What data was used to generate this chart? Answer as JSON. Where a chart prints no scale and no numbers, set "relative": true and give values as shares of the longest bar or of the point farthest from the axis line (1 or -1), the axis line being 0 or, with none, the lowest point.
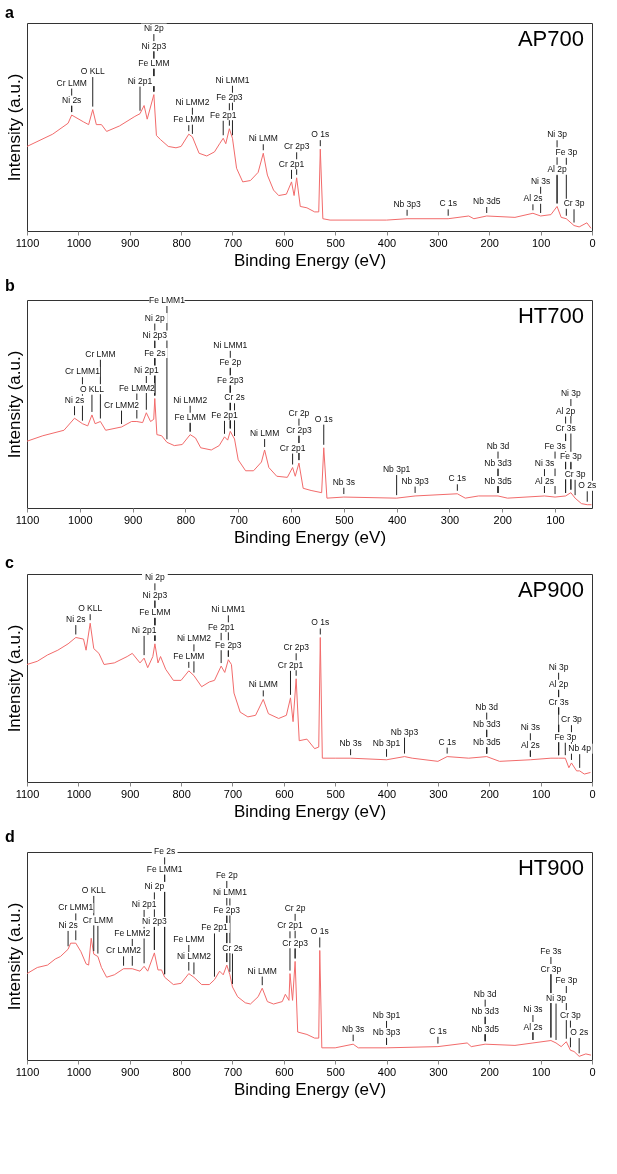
{
  "chart_data": [
    {
      "type": "line",
      "title": "a",
      "xlabel": "Binding Energy (eV)",
      "ylabel": "Intensity (a.u.)",
      "relative": true,
      "xlim": [
        1100,
        0
      ],
      "xticks": [
        1100,
        1000,
        900,
        800,
        700,
        600,
        500,
        400,
        300,
        200,
        100,
        0
      ],
      "x": [
        1100,
        1050,
        1020,
        1013,
        990,
        980,
        972,
        965,
        955,
        945,
        920,
        890,
        880,
        872,
        866,
        853,
        848,
        840,
        825,
        810,
        800,
        785,
        778,
        765,
        750,
        735,
        725,
        718,
        713,
        706,
        700,
        692,
        680,
        665,
        650,
        640,
        632,
        620,
        610,
        595,
        585,
        580,
        575,
        568,
        555,
        540,
        532,
        529,
        524,
        510,
        400,
        360,
        280,
        240,
        230,
        205,
        150,
        115,
        100,
        80,
        68,
        60,
        50,
        35,
        25,
        10,
        2
      ],
      "series": [
        {
          "color": "#f26b6b",
          "values": [
            0.62,
            0.71,
            0.79,
            0.85,
            0.8,
            0.78,
            0.89,
            0.78,
            0.78,
            0.73,
            0.77,
            0.84,
            0.86,
            0.92,
            0.82,
            1,
            0.7,
            0.67,
            0.62,
            0.61,
            0.62,
            0.71,
            0.69,
            0.57,
            0.55,
            0.58,
            0.64,
            0.68,
            0.64,
            0.75,
            0.68,
            0.46,
            0.36,
            0.37,
            0.43,
            0.57,
            0.41,
            0.3,
            0.26,
            0.27,
            0.36,
            0.26,
            0.39,
            0.18,
            0.17,
            0.14,
            0.14,
            0.6,
            0.09,
            0.08,
            0.08,
            0.09,
            0.09,
            0.11,
            0.09,
            0.11,
            0.1,
            0.13,
            0.11,
            0.12,
            0.18,
            0.1,
            0.09,
            0.04,
            0.03,
            0.06,
            0.02
          ]
        }
      ],
      "annotations": [
        "AP700",
        {
          "text": "Ni 2s",
          "x": 1013,
          "y": 0.85
        },
        {
          "text": "Cr LMM",
          "x": 1013,
          "y": 0.85
        },
        {
          "text": "O KLL",
          "x": 972,
          "y": 0.89
        },
        {
          "text": "Ni 2p1",
          "x": 880,
          "y": 0.86
        },
        {
          "text": "Fe LMM",
          "x": 853,
          "y": 1
        },
        {
          "text": "Ni 2p3",
          "x": 853,
          "y": 1
        },
        {
          "text": "Ni 2p",
          "x": 853,
          "y": 1
        },
        {
          "text": "Fe LMM",
          "x": 785,
          "y": 0.71
        },
        {
          "text": "Ni LMM2",
          "x": 778,
          "y": 0.69
        },
        {
          "text": "Fe 2p1",
          "x": 718,
          "y": 0.68
        },
        {
          "text": "Fe 2p3",
          "x": 706,
          "y": 0.75
        },
        {
          "text": "Ni LMM1",
          "x": 700,
          "y": 0.68
        },
        {
          "text": "Ni LMM",
          "x": 640,
          "y": 0.57
        },
        {
          "text": "O 1s",
          "x": 529,
          "y": 0.6
        },
        {
          "text": "Cr 2p1",
          "x": 585,
          "y": 0.36
        },
        {
          "text": "Cr 2p3",
          "x": 575,
          "y": 0.39
        },
        {
          "text": "Nb 3p3",
          "x": 360,
          "y": 0.09
        },
        {
          "text": "C 1s",
          "x": 280,
          "y": 0.09
        },
        {
          "text": "Nb 3d5",
          "x": 205,
          "y": 0.11
        },
        {
          "text": "Al 2s",
          "x": 115,
          "y": 0.13
        },
        {
          "text": "Ni 3s",
          "x": 100,
          "y": 0.11
        },
        {
          "text": "Cr 3p",
          "x": 35,
          "y": 0.04
        },
        {
          "text": "Al 2p",
          "x": 68,
          "y": 0.18
        },
        {
          "text": "Fe 3p",
          "x": 50,
          "y": 0.09
        },
        {
          "text": "Ni 3p",
          "x": 68,
          "y": 0.18
        }
      ]
    },
    {
      "type": "line",
      "title": "b",
      "xlabel": "Binding Energy (eV)",
      "ylabel": "Intensity (a.u.)",
      "relative": true,
      "xlim": [
        1100,
        30
      ],
      "xticks": [
        1100,
        1000,
        900,
        800,
        700,
        600,
        500,
        400,
        300,
        200,
        100
      ],
      "x": [
        1100,
        1070,
        1030,
        1010,
        995,
        985,
        977,
        971,
        961,
        951,
        921,
        902,
        892,
        881,
        874,
        866,
        860,
        858,
        854,
        845,
        835,
        821,
        806,
        791,
        781,
        771,
        751,
        736,
        726,
        720,
        715,
        707,
        700,
        686,
        671,
        656,
        650,
        642,
        627,
        607,
        597,
        592,
        585,
        577,
        562,
        542,
        538,
        532,
        500,
        400,
        365,
        285,
        270,
        245,
        208,
        190,
        120,
        100,
        80,
        70,
        62,
        50,
        39,
        31
      ],
      "series": [
        {
          "color": "#f26b6b",
          "values": [
            0.61,
            0.66,
            0.71,
            0.82,
            0.77,
            0.75,
            0.85,
            0.77,
            0.79,
            0.71,
            0.74,
            0.79,
            0.79,
            0.78,
            0.87,
            0.79,
            0.81,
            1,
            0.67,
            0.66,
            0.6,
            0.57,
            0.58,
            0.67,
            0.64,
            0.55,
            0.53,
            0.57,
            0.65,
            0.62,
            0.7,
            0.63,
            0.44,
            0.34,
            0.34,
            0.42,
            0.53,
            0.37,
            0.29,
            0.28,
            0.37,
            0.29,
            0.41,
            0.18,
            0.16,
            0.14,
            0.55,
            0.09,
            0.1,
            0.09,
            0.11,
            0.13,
            0.09,
            0.11,
            0.11,
            0.09,
            0.11,
            0.1,
            0.11,
            0.14,
            0.09,
            0.04,
            0.03,
            0.03
          ]
        }
      ],
      "annotations": [
        "HT700",
        {
          "text": "Ni 2s",
          "x": 1010,
          "y": 0.82
        },
        {
          "text": "O KLL",
          "x": 977,
          "y": 0.85
        },
        {
          "text": "Cr LMM1",
          "x": 995,
          "y": 0.77
        },
        {
          "text": "Cr LMM",
          "x": 961,
          "y": 0.79
        },
        {
          "text": "Cr LMM2",
          "x": 921,
          "y": 0.74
        },
        {
          "text": "Fe LMM2",
          "x": 892,
          "y": 0.79
        },
        {
          "text": "Ni 2p1",
          "x": 874,
          "y": 0.87
        },
        {
          "text": "Fe 2s",
          "x": 858,
          "y": 1
        },
        {
          "text": "Ni 2p3",
          "x": 858,
          "y": 1
        },
        {
          "text": "Ni 2p",
          "x": 858,
          "y": 1
        },
        {
          "text": "Fe LMM1",
          "x": 835,
          "y": 0.6
        },
        {
          "text": "Fe LMM",
          "x": 791,
          "y": 0.67
        },
        {
          "text": "Ni LMM2",
          "x": 791,
          "y": 0.67
        },
        {
          "text": "Fe 2p1",
          "x": 726,
          "y": 0.65
        },
        {
          "text": "Cr 2s",
          "x": 707,
          "y": 0.63
        },
        {
          "text": "Fe 2p3",
          "x": 715,
          "y": 0.7
        },
        {
          "text": "Fe 2p",
          "x": 715,
          "y": 0.7
        },
        {
          "text": "Ni LMM1",
          "x": 715,
          "y": 0.7
        },
        {
          "text": "Ni LMM",
          "x": 650,
          "y": 0.53
        },
        {
          "text": "Cr 2p1",
          "x": 597,
          "y": 0.37
        },
        {
          "text": "Cr 2p3",
          "x": 585,
          "y": 0.41
        },
        {
          "text": "Cr 2p",
          "x": 585,
          "y": 0.41
        },
        {
          "text": "O 1s",
          "x": 538,
          "y": 0.55
        },
        {
          "text": "Nb 3s",
          "x": 500,
          "y": 0.1
        },
        {
          "text": "Nb 3p3",
          "x": 365,
          "y": 0.11
        },
        {
          "text": "Nb 3p1",
          "x": 400,
          "y": 0.09
        },
        {
          "text": "C 1s",
          "x": 285,
          "y": 0.13
        },
        {
          "text": "Nb 3d5",
          "x": 208,
          "y": 0.11
        },
        {
          "text": "Nb 3d3",
          "x": 208,
          "y": 0.11
        },
        {
          "text": "Nb 3d",
          "x": 208,
          "y": 0.11
        },
        {
          "text": "Al 2s",
          "x": 120,
          "y": 0.11
        },
        {
          "text": "Ni 3s",
          "x": 120,
          "y": 0.11
        },
        {
          "text": "Fe 3s",
          "x": 100,
          "y": 0.1
        },
        {
          "text": "O 2s",
          "x": 39,
          "y": 0.03
        },
        {
          "text": "Cr 3p",
          "x": 62,
          "y": 0.09
        },
        {
          "text": "Fe 3p",
          "x": 70,
          "y": 0.14
        },
        {
          "text": "Cr 3s",
          "x": 80,
          "y": 0.11
        },
        {
          "text": "Al 2p",
          "x": 80,
          "y": 0.11
        },
        {
          "text": "Ni 3p",
          "x": 70,
          "y": 0.14
        }
      ]
    },
    {
      "type": "line",
      "title": "c",
      "xlabel": "Binding Energy (eV)",
      "ylabel": "Intensity (a.u.)",
      "relative": true,
      "xlim": [
        1100,
        0
      ],
      "xticks": [
        1100,
        1000,
        900,
        800,
        700,
        600,
        500,
        400,
        300,
        200,
        100,
        0
      ],
      "x": [
        1100,
        1080,
        1060,
        1040,
        1020,
        1005,
        990,
        985,
        977,
        970,
        960,
        950,
        930,
        905,
        895,
        880,
        872,
        865,
        855,
        851,
        845,
        840,
        830,
        815,
        800,
        785,
        775,
        760,
        745,
        735,
        722,
        715,
        708,
        702,
        697,
        685,
        670,
        655,
        640,
        630,
        610,
        595,
        587,
        582,
        576,
        570,
        555,
        540,
        532,
        529,
        525,
        500,
        470,
        400,
        365,
        350,
        300,
        282,
        240,
        205,
        180,
        120,
        80,
        65,
        52,
        45,
        40,
        30,
        24,
        15,
        3
      ],
      "series": [
        {
          "color": "#f26b6b",
          "values": [
            0.74,
            0.76,
            0.8,
            0.83,
            0.87,
            0.91,
            0.9,
            0.83,
            1,
            0.84,
            0.81,
            0.74,
            0.75,
            0.79,
            0.81,
            0.75,
            0.78,
            0.72,
            0.79,
            0.87,
            0.75,
            0.79,
            0.71,
            0.64,
            0.64,
            0.7,
            0.67,
            0.6,
            0.63,
            0.64,
            0.73,
            0.69,
            0.77,
            0.74,
            0.56,
            0.44,
            0.41,
            0.42,
            0.52,
            0.43,
            0.4,
            0.42,
            0.53,
            0.38,
            0.65,
            0.26,
            0.27,
            0.21,
            0.22,
            0.91,
            0.15,
            0.15,
            0.15,
            0.14,
            0.16,
            0.15,
            0.13,
            0.16,
            0.15,
            0.16,
            0.13,
            0.14,
            0.15,
            0.15,
            0.15,
            0.09,
            0.12,
            0.07,
            0.07,
            0.05,
            0.06
          ]
        }
      ],
      "annotations": [
        "AP900",
        {
          "text": "Ni 2s",
          "x": 1005,
          "y": 0.91
        },
        {
          "text": "O KLL",
          "x": 977,
          "y": 1
        },
        {
          "text": "Ni 2p1",
          "x": 872,
          "y": 0.78
        },
        {
          "text": "Fe LMM",
          "x": 851,
          "y": 0.87
        },
        {
          "text": "Ni 2p3",
          "x": 851,
          "y": 0.87
        },
        {
          "text": "Ni 2p",
          "x": 851,
          "y": 0.87
        },
        {
          "text": "Fe LMM",
          "x": 785,
          "y": 0.7
        },
        {
          "text": "Ni LMM2",
          "x": 775,
          "y": 0.67
        },
        {
          "text": "Fe 2p1",
          "x": 722,
          "y": 0.73
        },
        {
          "text": "Fe 2p3",
          "x": 708,
          "y": 0.77
        },
        {
          "text": "Ni LMM1",
          "x": 708,
          "y": 0.77
        },
        {
          "text": "Ni LMM",
          "x": 640,
          "y": 0.52
        },
        {
          "text": "Cr 2p1",
          "x": 587,
          "y": 0.53
        },
        {
          "text": "Cr 2p3",
          "x": 576,
          "y": 0.65
        },
        {
          "text": "O 1s",
          "x": 529,
          "y": 0.91
        },
        {
          "text": "Nb 3s",
          "x": 470,
          "y": 0.15
        },
        {
          "text": "Nb 3p1",
          "x": 400,
          "y": 0.14
        },
        {
          "text": "Nb 3p3",
          "x": 365,
          "y": 0.16
        },
        {
          "text": "C 1s",
          "x": 282,
          "y": 0.16
        },
        {
          "text": "Nb 3d5",
          "x": 205,
          "y": 0.16
        },
        {
          "text": "Nb 3d3",
          "x": 205,
          "y": 0.16
        },
        {
          "text": "Nb 3d",
          "x": 205,
          "y": 0.16
        },
        {
          "text": "Al 2s",
          "x": 120,
          "y": 0.14
        },
        {
          "text": "Ni 3s",
          "x": 120,
          "y": 0.14
        },
        {
          "text": "Nb 4p",
          "x": 24,
          "y": 0.07
        },
        {
          "text": "Fe 3p",
          "x": 52,
          "y": 0.15
        },
        {
          "text": "Cr 3p",
          "x": 40,
          "y": 0.12
        },
        {
          "text": "Cr 3s",
          "x": 65,
          "y": 0.15
        },
        {
          "text": "Al 2p",
          "x": 65,
          "y": 0.15
        },
        {
          "text": "Ni 3p",
          "x": 65,
          "y": 0.15
        }
      ]
    },
    {
      "type": "line",
      "title": "d",
      "xlabel": "Binding Energy (eV)",
      "ylabel": "Intensity (a.u.)",
      "relative": true,
      "xlim": [
        1100,
        0
      ],
      "xticks": [
        1100,
        1000,
        900,
        800,
        700,
        600,
        500,
        400,
        300,
        200,
        100,
        0
      ],
      "x": [
        1100,
        1080,
        1060,
        1045,
        1035,
        1020,
        1015,
        1005,
        995,
        985,
        980,
        975,
        970,
        962,
        955,
        945,
        930,
        912,
        895,
        880,
        872,
        865,
        852,
        845,
        838,
        832,
        815,
        800,
        785,
        775,
        760,
        745,
        735,
        725,
        718,
        711,
        705,
        700,
        690,
        675,
        665,
        650,
        642,
        632,
        620,
        603,
        597,
        590,
        588,
        583,
        578,
        573,
        555,
        540,
        532,
        530,
        526,
        500,
        465,
        455,
        400,
        300,
        243,
        235,
        208,
        150,
        115,
        80,
        70,
        60,
        50,
        42,
        35,
        25,
        12,
        2
      ],
      "series": [
        {
          "color": "#f26b6b",
          "values": [
            0.71,
            0.76,
            0.78,
            0.83,
            0.85,
            0.91,
            0.96,
            0.96,
            0.89,
            0.79,
            0.78,
            1,
            0.87,
            0.85,
            0.76,
            0.68,
            0.7,
            0.75,
            0.75,
            0.73,
            0.77,
            0.73,
            0.88,
            0.74,
            0.74,
            0.68,
            0.62,
            0.63,
            0.71,
            0.68,
            0.62,
            0.62,
            0.66,
            0.73,
            0.7,
            0.78,
            0.7,
            0.6,
            0.52,
            0.47,
            0.46,
            0.52,
            0.59,
            0.48,
            0.46,
            0.48,
            0.54,
            0.49,
            0.71,
            0.49,
            0.81,
            0.23,
            0.21,
            0.18,
            0.18,
            0.9,
            0.1,
            0.1,
            0.13,
            0.1,
            0.1,
            0.11,
            0.14,
            0.11,
            0.13,
            0.12,
            0.14,
            0.16,
            0.14,
            0.11,
            0.15,
            0.08,
            0.07,
            0.03,
            0.05,
            0.04
          ]
        }
      ],
      "annotations": [
        "HT900",
        {
          "text": "Ni 2s",
          "x": 1020,
          "y": 0.91
        },
        {
          "text": "Cr LMM1",
          "x": 1005,
          "y": 0.96
        },
        {
          "text": "O KLL",
          "x": 970,
          "y": 0.87
        },
        {
          "text": "Cr LMM",
          "x": 962,
          "y": 0.85
        },
        {
          "text": "Cr LMM2",
          "x": 912,
          "y": 0.75
        },
        {
          "text": "Fe LMM2",
          "x": 895,
          "y": 0.75
        },
        {
          "text": "Ni 2p3",
          "x": 852,
          "y": 0.88
        },
        {
          "text": "Ni 2p1",
          "x": 872,
          "y": 0.77
        },
        {
          "text": "Ni 2p",
          "x": 852,
          "y": 0.88
        },
        {
          "text": "Fe LMM1",
          "x": 832,
          "y": 0.68
        },
        {
          "text": "Fe 2s",
          "x": 832,
          "y": 0.68
        },
        {
          "text": "Ni LMM2",
          "x": 775,
          "y": 0.68
        },
        {
          "text": "Fe LMM",
          "x": 785,
          "y": 0.71
        },
        {
          "text": "Fe 2p1",
          "x": 735,
          "y": 0.66
        },
        {
          "text": "Cr 2s",
          "x": 700,
          "y": 0.6
        },
        {
          "text": "Fe 2p3",
          "x": 711,
          "y": 0.78
        },
        {
          "text": "Ni LMM1",
          "x": 705,
          "y": 0.7
        },
        {
          "text": "Fe 2p",
          "x": 711,
          "y": 0.78
        },
        {
          "text": "Ni LMM",
          "x": 642,
          "y": 0.59
        },
        {
          "text": "Cr 2p3",
          "x": 578,
          "y": 0.81
        },
        {
          "text": "Cr 2p1",
          "x": 588,
          "y": 0.71
        },
        {
          "text": "Cr 2p",
          "x": 578,
          "y": 0.81
        },
        {
          "text": "O 1s",
          "x": 530,
          "y": 0.9
        },
        {
          "text": "Nb 3s",
          "x": 465,
          "y": 0.13
        },
        {
          "text": "Nb 3p3",
          "x": 400,
          "y": 0.1
        },
        {
          "text": "Nb 3p1",
          "x": 400,
          "y": 0.1
        },
        {
          "text": "C 1s",
          "x": 300,
          "y": 0.11
        },
        {
          "text": "Nb 3d5",
          "x": 208,
          "y": 0.13
        },
        {
          "text": "Nb 3d3",
          "x": 208,
          "y": 0.13
        },
        {
          "text": "Nb 3d",
          "x": 208,
          "y": 0.13
        },
        {
          "text": "Al 2s",
          "x": 115,
          "y": 0.14
        },
        {
          "text": "Ni 3s",
          "x": 115,
          "y": 0.14
        },
        {
          "text": "O 2s",
          "x": 25,
          "y": 0.03
        },
        {
          "text": "Cr 3p",
          "x": 42,
          "y": 0.08
        },
        {
          "text": "Ni 3p",
          "x": 70,
          "y": 0.14
        },
        {
          "text": "Fe 3p",
          "x": 50,
          "y": 0.15
        },
        {
          "text": "Cr 3p",
          "x": 80,
          "y": 0.16
        },
        {
          "text": "Fe 3s",
          "x": 80,
          "y": 0.16
        }
      ]
    }
  ]
}
